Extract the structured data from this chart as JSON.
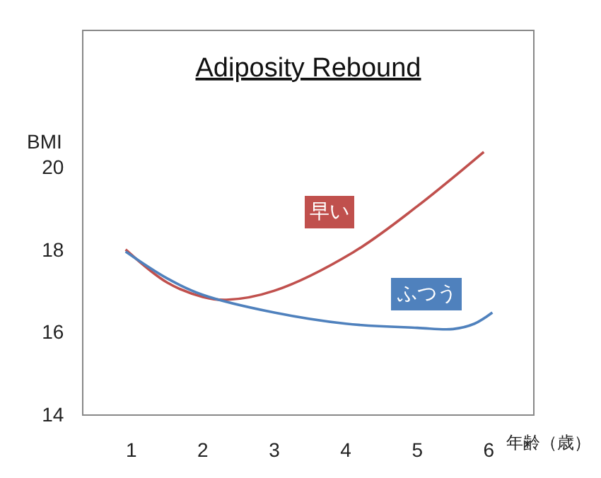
{
  "chart_data": {
    "type": "line",
    "title": "Adiposity Rebound",
    "xlabel": "年齢（歳）",
    "ylabel": "BMI",
    "xlim": [
      0.33,
      6.62
    ],
    "ylim": [
      14,
      23.3
    ],
    "xticks": [
      1,
      2,
      3,
      4,
      5,
      6
    ],
    "yticks": [
      14,
      16,
      18,
      20
    ],
    "grid": false,
    "legend": false,
    "marker": "none",
    "line_style": "solid",
    "series": [
      {
        "name": "早い",
        "color": "#c0504d",
        "x": [
          0.92,
          1.5,
          2,
          2.33,
          3,
          4.1,
          5,
          5.93
        ],
        "values": [
          18.0,
          17.2,
          16.85,
          16.78,
          17.0,
          17.93,
          19.05,
          20.37
        ]
      },
      {
        "name": "ふつう",
        "color": "#4f81bd",
        "x": [
          0.92,
          1.5,
          2,
          3,
          4,
          5,
          5.5,
          5.8,
          6.05
        ],
        "values": [
          17.95,
          17.3,
          16.9,
          16.47,
          16.2,
          16.1,
          16.07,
          16.2,
          16.47
        ]
      }
    ]
  }
}
